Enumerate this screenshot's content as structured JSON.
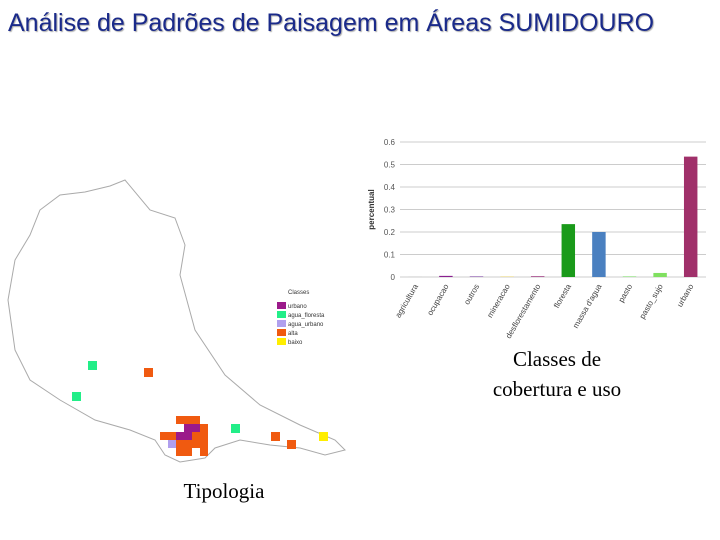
{
  "title": "Análise de Padrões de Paisagem em Áreas SUMIDOURO",
  "chart_data": {
    "type": "bar",
    "y_label": "percentual",
    "categories": [
      "agricultura",
      "ocupacao",
      "outros",
      "mineracao",
      "desflorestamento",
      "floresta",
      "massa d'agua",
      "pasto",
      "pasto_sujo",
      "urbano"
    ],
    "values": [
      0.001,
      0.005,
      0.003,
      0.002,
      0.003,
      0.235,
      0.2,
      0.003,
      0.018,
      0.535
    ],
    "colors": [
      "#c0c0c0",
      "#8a2090",
      "#9060b0",
      "#e8d060",
      "#902070",
      "#1a9a1a",
      "#4a80c0",
      "#90e080",
      "#80e060",
      "#a0306a"
    ],
    "ylim": [
      0,
      0.6
    ],
    "yticks": [
      0,
      0.1,
      0.2,
      0.3,
      0.4,
      0.5,
      0.6
    ],
    "grid": true
  },
  "chart_caption": "Classes de cobertura e uso",
  "map": {
    "legend_title": "Classes",
    "legend": [
      {
        "label": "urbano",
        "color": "#9b1a8a"
      },
      {
        "label": "agua_floresta",
        "color": "#22ee88"
      },
      {
        "label": "agua_urbano",
        "color": "#b0a0ee"
      },
      {
        "label": "alta",
        "color": "#f05a10"
      },
      {
        "label": "baixo",
        "color": "#ffee00"
      }
    ],
    "caption": "Tipologia"
  }
}
